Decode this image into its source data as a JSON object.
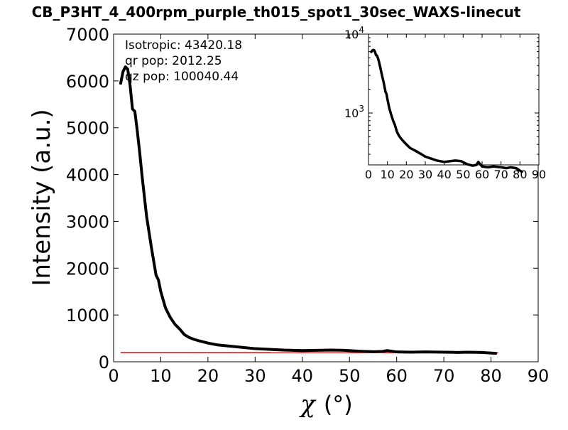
{
  "chart_data": {
    "type": "line",
    "title": "CB_P3HT_4_400rpm_purple_th015_spot1_30sec_WAXS-linecut",
    "xlabel_symbol": "χ",
    "xlabel_unit": "(°)",
    "ylabel": "Intensity (a.u.)",
    "xlim": [
      0,
      90
    ],
    "ylim": [
      0,
      7000
    ],
    "xticks": [
      0,
      10,
      20,
      30,
      40,
      50,
      60,
      70,
      80,
      90
    ],
    "yticks": [
      0,
      1000,
      2000,
      3000,
      4000,
      5000,
      6000,
      7000
    ],
    "grid": false,
    "annotations": [
      "Isotropic: 43420.18",
      "qr pop: 2012.25",
      "qz pop: 100040.44"
    ],
    "colors": {
      "data": "#000000",
      "baseline": "#ff0000"
    },
    "series": [
      {
        "style": "thick-black",
        "x": [
          1.5,
          2.0,
          2.5,
          3.0,
          3.5,
          4.0,
          4.5,
          5.0,
          5.5,
          6.0,
          7.0,
          8.0,
          9.0,
          9.5,
          10.0,
          11.0,
          12.0,
          13.0,
          14.0,
          15.0,
          16.0,
          17.0,
          18.0,
          20.0,
          22.0,
          25.0,
          28.0,
          30.0,
          33.0,
          36.0,
          40.0,
          43.0,
          46.0,
          49.0,
          52.0,
          55.0,
          57.0,
          58.0,
          60.0,
          63.0,
          66.0,
          70.0,
          73.0,
          75.0,
          78.0,
          81.0
        ],
        "y": [
          5950,
          6200,
          6300,
          6250,
          5900,
          5400,
          5350,
          4950,
          4500,
          4000,
          3100,
          2450,
          1850,
          1750,
          1500,
          1150,
          950,
          800,
          700,
          580,
          520,
          480,
          450,
          400,
          360,
          330,
          300,
          280,
          265,
          250,
          240,
          245,
          250,
          245,
          225,
          215,
          220,
          240,
          210,
          205,
          210,
          205,
          200,
          205,
          200,
          180
        ]
      },
      {
        "style": "thin-red",
        "x": [
          1.5,
          81.5
        ],
        "y": [
          200,
          195
        ]
      }
    ],
    "inset": {
      "type": "line",
      "yscale": "log",
      "xlim": [
        0,
        90
      ],
      "ylim": [
        220,
        10000
      ],
      "xticks": [
        0,
        10,
        20,
        30,
        40,
        50,
        60,
        70,
        80,
        90
      ],
      "yticks_major": [
        {
          "value": 1000,
          "base": "10",
          "exp": "3"
        },
        {
          "value": 10000,
          "base": "10",
          "exp": "4"
        }
      ]
    }
  }
}
